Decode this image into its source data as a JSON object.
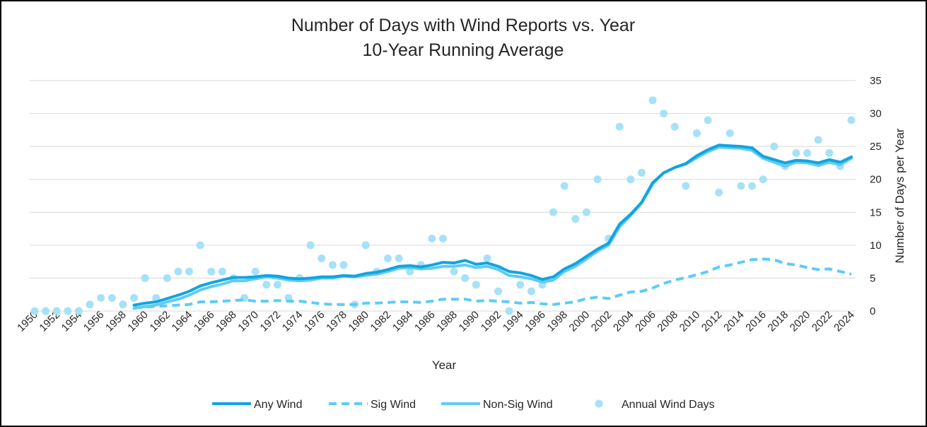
{
  "chart_data": {
    "type": "line",
    "title": "Number of Days with Wind Reports vs. Year",
    "subtitle": "10-Year Running Average",
    "xlabel": "Year",
    "ylabel": "Number of Days per Year",
    "xlim": [
      1950,
      2024
    ],
    "ylim": [
      0,
      35
    ],
    "ytick_step": 5,
    "grid": true,
    "legend_position": "bottom",
    "x_tick_labels": [
      "1950",
      "1952",
      "1954",
      "1956",
      "1958",
      "1960",
      "1962",
      "1964",
      "1966",
      "1968",
      "1970",
      "1972",
      "1974",
      "1976",
      "1978",
      "1980",
      "1982",
      "1984",
      "1986",
      "1988",
      "1990",
      "1992",
      "1994",
      "1996",
      "1998",
      "2000",
      "2002",
      "2004",
      "2006",
      "2008",
      "2010",
      "2012",
      "2014",
      "2016",
      "2018",
      "2020",
      "2022",
      "2024"
    ],
    "y_tick_labels": [
      "0",
      "5",
      "10",
      "15",
      "20",
      "25",
      "30",
      "35"
    ],
    "colors": {
      "any_wind": "#12A4E0",
      "sig_wind": "#5DCCF5",
      "non_sig_wind": "#5DCCF5",
      "annual": "#A6E1F7",
      "grid": "#D9D9D9"
    },
    "series": [
      {
        "name": "Any Wind",
        "kind": "line",
        "dash": "solid",
        "x": [
          1959,
          1960,
          1961,
          1962,
          1963,
          1964,
          1965,
          1966,
          1967,
          1968,
          1969,
          1970,
          1971,
          1972,
          1973,
          1974,
          1975,
          1976,
          1977,
          1978,
          1979,
          1980,
          1981,
          1982,
          1983,
          1984,
          1985,
          1986,
          1987,
          1988,
          1989,
          1990,
          1991,
          1992,
          1993,
          1994,
          1995,
          1996,
          1997,
          1998,
          1999,
          2000,
          2001,
          2002,
          2003,
          2004,
          2005,
          2006,
          2007,
          2008,
          2009,
          2010,
          2011,
          2012,
          2013,
          2014,
          2015,
          2016,
          2017,
          2018,
          2019,
          2020,
          2021,
          2022,
          2023,
          2024
        ],
        "y": [
          0.9,
          1.2,
          1.4,
          1.9,
          2.4,
          3.0,
          3.8,
          4.3,
          4.7,
          5.1,
          5.1,
          5.2,
          5.4,
          5.3,
          5.0,
          4.9,
          5.0,
          5.2,
          5.2,
          5.4,
          5.3,
          5.7,
          5.9,
          6.3,
          6.8,
          6.9,
          6.7,
          7.0,
          7.4,
          7.3,
          7.7,
          7.1,
          7.3,
          6.8,
          6.0,
          5.8,
          5.4,
          4.8,
          5.2,
          6.4,
          7.2,
          8.3,
          9.4,
          10.3,
          13.2,
          14.7,
          16.5,
          19.5,
          21.0,
          21.8,
          22.4,
          23.6,
          24.5,
          25.2,
          25.1,
          25.0,
          24.8,
          23.5,
          23.0,
          22.5,
          22.9,
          22.8,
          22.5,
          23.0,
          22.6,
          23.4
        ]
      },
      {
        "name": "Sig Wind",
        "kind": "line",
        "dash": "dashed",
        "x": [
          1959,
          1960,
          1961,
          1962,
          1963,
          1964,
          1965,
          1966,
          1967,
          1968,
          1969,
          1970,
          1971,
          1972,
          1973,
          1974,
          1975,
          1976,
          1977,
          1978,
          1979,
          1980,
          1981,
          1982,
          1983,
          1984,
          1985,
          1986,
          1987,
          1988,
          1989,
          1990,
          1991,
          1992,
          1993,
          1994,
          1995,
          1996,
          1997,
          1998,
          1999,
          2000,
          2001,
          2002,
          2003,
          2004,
          2005,
          2006,
          2007,
          2008,
          2009,
          2010,
          2011,
          2012,
          2013,
          2014,
          2015,
          2016,
          2017,
          2018,
          2019,
          2020,
          2021,
          2022,
          2023,
          2024
        ],
        "y": [
          0.5,
          0.6,
          0.7,
          0.8,
          0.9,
          1.0,
          1.4,
          1.4,
          1.5,
          1.6,
          1.7,
          1.5,
          1.5,
          1.6,
          1.5,
          1.5,
          1.3,
          1.1,
          1.0,
          1.0,
          1.0,
          1.2,
          1.2,
          1.3,
          1.4,
          1.4,
          1.3,
          1.5,
          1.8,
          1.8,
          1.8,
          1.5,
          1.6,
          1.5,
          1.4,
          1.2,
          1.3,
          1.1,
          1.0,
          1.2,
          1.4,
          1.9,
          2.1,
          1.9,
          2.4,
          2.9,
          3.0,
          3.5,
          4.2,
          4.7,
          5.1,
          5.5,
          6.0,
          6.7,
          7.0,
          7.4,
          7.8,
          7.9,
          7.8,
          7.2,
          7.0,
          6.6,
          6.3,
          6.4,
          6.0,
          5.6
        ]
      },
      {
        "name": "Non-Sig Wind",
        "kind": "line",
        "dash": "solid",
        "x": [
          1959,
          1960,
          1961,
          1962,
          1963,
          1964,
          1965,
          1966,
          1967,
          1968,
          1969,
          1970,
          1971,
          1972,
          1973,
          1974,
          1975,
          1976,
          1977,
          1978,
          1979,
          1980,
          1981,
          1982,
          1983,
          1984,
          1985,
          1986,
          1987,
          1988,
          1989,
          1990,
          1991,
          1992,
          1993,
          1994,
          1995,
          1996,
          1997,
          1998,
          1999,
          2000,
          2001,
          2002,
          2003,
          2004,
          2005,
          2006,
          2007,
          2008,
          2009,
          2010,
          2011,
          2012,
          2013,
          2014,
          2015,
          2016,
          2017,
          2018,
          2019,
          2020,
          2021,
          2022,
          2023,
          2024
        ],
        "y": [
          0.4,
          0.7,
          0.9,
          1.4,
          1.8,
          2.4,
          3.2,
          3.7,
          4.1,
          4.6,
          4.6,
          4.9,
          5.2,
          5.0,
          4.7,
          4.6,
          4.7,
          5.0,
          5.0,
          5.3,
          5.2,
          5.4,
          5.6,
          6.0,
          6.5,
          6.6,
          6.4,
          6.5,
          6.8,
          6.8,
          7.0,
          6.6,
          6.8,
          6.3,
          5.4,
          5.2,
          4.9,
          4.4,
          4.7,
          6.0,
          6.8,
          7.9,
          9.1,
          10.0,
          12.8,
          14.5,
          16.4,
          19.3,
          21.0,
          21.8,
          22.3,
          23.3,
          24.2,
          24.9,
          24.8,
          24.7,
          24.4,
          23.2,
          22.6,
          22.0,
          22.6,
          22.5,
          22.1,
          22.6,
          22.2,
          23.2
        ]
      },
      {
        "name": "Annual Wind Days",
        "kind": "scatter",
        "x": [
          1950,
          1951,
          1952,
          1953,
          1954,
          1955,
          1956,
          1957,
          1958,
          1959,
          1960,
          1961,
          1962,
          1963,
          1964,
          1965,
          1966,
          1967,
          1968,
          1969,
          1970,
          1971,
          1972,
          1973,
          1974,
          1975,
          1976,
          1977,
          1978,
          1979,
          1980,
          1981,
          1982,
          1983,
          1984,
          1985,
          1986,
          1987,
          1988,
          1989,
          1990,
          1991,
          1992,
          1993,
          1994,
          1995,
          1996,
          1997,
          1998,
          1999,
          2000,
          2001,
          2002,
          2003,
          2004,
          2005,
          2006,
          2007,
          2008,
          2009,
          2010,
          2011,
          2012,
          2013,
          2014,
          2015,
          2016,
          2017,
          2018,
          2019,
          2020,
          2021,
          2022,
          2023,
          2024
        ],
        "y": [
          0,
          0,
          0,
          0,
          0,
          1,
          2,
          2,
          1,
          2,
          5,
          2,
          5,
          6,
          6,
          10,
          6,
          6,
          5,
          2,
          6,
          4,
          4,
          2,
          5,
          10,
          8,
          7,
          7,
          1,
          10,
          6,
          8,
          8,
          6,
          7,
          11,
          11,
          6,
          5,
          4,
          8,
          3,
          0,
          4,
          3,
          4,
          15,
          19,
          14,
          15,
          20,
          11,
          28,
          20,
          21,
          32,
          30,
          28,
          19,
          27,
          29,
          18,
          27,
          19,
          19,
          20,
          25,
          22,
          24,
          24,
          26,
          24,
          22,
          29
        ]
      }
    ]
  }
}
